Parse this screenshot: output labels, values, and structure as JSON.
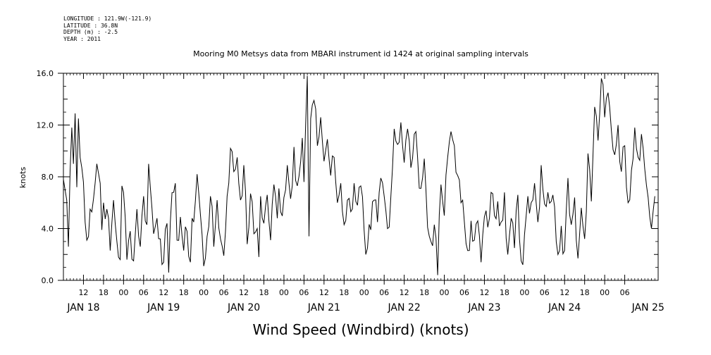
{
  "metadata": {
    "longitude": "LONGITUDE : 121.9W(-121.9)",
    "latitude": "LATITUDE : 36.8N",
    "depth": "DEPTH (m) : -2.5",
    "year": "YEAR : 2011"
  },
  "chart_data": {
    "type": "line",
    "title": "Mooring M0 Metsys data from MBARI instrument id 1424 at original sampling intervals",
    "xlabel": "Wind Speed (Windbird) (knots)",
    "ylabel": "knots",
    "ylim": [
      0,
      16
    ],
    "y_ticks": [
      "0.0",
      "4.0",
      "8.0",
      "12.0",
      "16.0"
    ],
    "xlim_hours": [
      0,
      178
    ],
    "x_hour_ticks": [
      "12",
      "18",
      "00",
      "06",
      "12",
      "18",
      "00",
      "06",
      "12",
      "18",
      "00",
      "06",
      "12",
      "18",
      "00",
      "06",
      "12",
      "18",
      "00",
      "06",
      "12",
      "18",
      "00",
      "06",
      "12",
      "18",
      "00",
      "06"
    ],
    "day_labels": [
      "JAN 18",
      "JAN 19",
      "JAN 20",
      "JAN 21",
      "JAN 22",
      "JAN 23",
      "JAN 24",
      "JAN 25"
    ],
    "grid": false,
    "series": [
      {
        "anchors": [
          [
            0,
            7.8
          ],
          [
            1,
            6.2
          ],
          [
            1.5,
            2.6
          ],
          [
            2,
            8.5
          ],
          [
            2.5,
            11.8
          ],
          [
            3,
            9.0
          ],
          [
            3.5,
            12.9
          ],
          [
            4,
            7.2
          ],
          [
            4.5,
            12.5
          ],
          [
            5,
            9.5
          ],
          [
            6,
            7.6
          ],
          [
            6.5,
            4.5
          ],
          [
            7,
            3.1
          ],
          [
            8,
            5.5
          ],
          [
            9,
            6.3
          ],
          [
            10,
            9.0
          ],
          [
            11,
            7.5
          ],
          [
            11.5,
            3.9
          ],
          [
            12,
            6.0
          ],
          [
            13,
            5.5
          ],
          [
            14,
            2.3
          ],
          [
            15,
            6.2
          ],
          [
            16,
            3.0
          ],
          [
            17,
            1.6
          ],
          [
            17.5,
            7.3
          ],
          [
            18,
            6.8
          ],
          [
            19,
            1.6
          ],
          [
            20,
            3.8
          ],
          [
            21,
            1.5
          ],
          [
            22,
            5.5
          ],
          [
            23,
            2.6
          ],
          [
            24,
            6.5
          ],
          [
            25,
            4.3
          ],
          [
            25.5,
            9.0
          ],
          [
            26,
            7.2
          ],
          [
            27,
            3.6
          ],
          [
            28,
            4.8
          ],
          [
            29,
            3.2
          ],
          [
            30,
            1.4
          ],
          [
            31,
            4.4
          ],
          [
            31.5,
            0.6
          ],
          [
            32,
            4.5
          ],
          [
            33,
            6.8
          ],
          [
            33.5,
            7.5
          ],
          [
            34,
            3.1
          ],
          [
            35,
            4.9
          ],
          [
            36,
            2.3
          ],
          [
            37,
            3.8
          ],
          [
            38,
            1.4
          ],
          [
            38.5,
            4.8
          ],
          [
            39,
            4.5
          ],
          [
            40,
            8.2
          ],
          [
            41,
            5.1
          ],
          [
            42,
            1.1
          ],
          [
            43,
            3.4
          ],
          [
            44,
            6.5
          ],
          [
            45,
            2.6
          ],
          [
            46,
            6.2
          ],
          [
            47,
            3.2
          ],
          [
            48,
            1.9
          ],
          [
            49,
            6.5
          ],
          [
            50,
            10.2
          ],
          [
            51,
            8.4
          ],
          [
            52,
            9.5
          ],
          [
            53,
            6.2
          ],
          [
            54,
            8.9
          ],
          [
            55,
            2.8
          ],
          [
            56,
            6.7
          ],
          [
            57,
            3.6
          ],
          [
            58,
            4.0
          ],
          [
            58.5,
            1.8
          ],
          [
            59,
            6.5
          ],
          [
            60,
            4.4
          ],
          [
            61,
            6.6
          ],
          [
            62,
            3.1
          ],
          [
            63,
            7.4
          ],
          [
            64,
            4.8
          ],
          [
            64.5,
            7.1
          ],
          [
            65,
            5.3
          ],
          [
            66,
            6.4
          ],
          [
            67,
            8.9
          ],
          [
            68,
            6.3
          ],
          [
            69,
            10.3
          ],
          [
            70,
            7.3
          ],
          [
            71,
            9.2
          ],
          [
            71.5,
            11.0
          ],
          [
            72,
            7.6
          ],
          [
            73,
            15.8
          ],
          [
            73.5,
            3.4
          ],
          [
            74,
            12.5
          ],
          [
            75,
            13.9
          ],
          [
            76,
            10.4
          ],
          [
            77,
            12.6
          ],
          [
            78,
            9.2
          ],
          [
            79,
            10.9
          ],
          [
            80,
            8.1
          ],
          [
            81,
            9.5
          ],
          [
            82,
            6.0
          ],
          [
            83,
            7.5
          ],
          [
            84,
            4.3
          ],
          [
            85,
            6.2
          ],
          [
            86,
            5.3
          ],
          [
            87,
            7.5
          ],
          [
            88,
            5.8
          ],
          [
            89,
            7.3
          ],
          [
            90,
            3.9
          ],
          [
            90.5,
            2.0
          ],
          [
            91,
            2.5
          ],
          [
            92,
            3.9
          ],
          [
            93,
            6.2
          ],
          [
            94,
            4.5
          ],
          [
            95,
            7.9
          ],
          [
            96,
            6.5
          ],
          [
            97,
            4.0
          ],
          [
            98,
            6.5
          ],
          [
            99,
            11.7
          ],
          [
            100,
            10.5
          ],
          [
            101,
            12.2
          ],
          [
            102,
            9.1
          ],
          [
            103,
            11.7
          ],
          [
            104,
            8.7
          ],
          [
            105,
            11.3
          ],
          [
            106,
            9.5
          ],
          [
            107,
            7.1
          ],
          [
            108,
            9.4
          ],
          [
            109,
            4.1
          ],
          [
            110,
            3.0
          ],
          [
            111,
            4.3
          ],
          [
            111.5,
            3.3
          ],
          [
            112,
            0.4
          ],
          [
            113,
            7.4
          ],
          [
            114,
            5.0
          ],
          [
            115,
            9.5
          ],
          [
            116,
            11.5
          ],
          [
            117,
            10.4
          ],
          [
            118,
            8.1
          ],
          [
            119,
            6.0
          ],
          [
            120,
            4.5
          ],
          [
            121,
            2.3
          ],
          [
            122,
            4.6
          ],
          [
            123,
            3.1
          ],
          [
            124,
            4.6
          ],
          [
            125,
            1.4
          ],
          [
            126,
            4.9
          ],
          [
            127,
            4.1
          ],
          [
            128,
            6.8
          ],
          [
            129,
            5.0
          ],
          [
            130,
            6.1
          ],
          [
            131,
            4.5
          ],
          [
            132,
            6.8
          ],
          [
            133,
            2.0
          ],
          [
            134,
            4.8
          ],
          [
            135,
            2.5
          ],
          [
            136,
            6.6
          ],
          [
            137,
            1.5
          ],
          [
            137.5,
            1.2
          ],
          [
            138,
            3.5
          ],
          [
            139,
            6.5
          ],
          [
            140,
            6.0
          ],
          [
            141,
            7.5
          ],
          [
            142,
            4.5
          ],
          [
            143,
            8.9
          ],
          [
            144,
            5.9
          ],
          [
            145,
            6.8
          ],
          [
            146,
            6.1
          ],
          [
            147,
            5.7
          ],
          [
            148,
            2.0
          ],
          [
            149,
            4.2
          ],
          [
            150,
            2.3
          ],
          [
            151,
            7.9
          ],
          [
            152,
            4.3
          ],
          [
            153,
            6.4
          ],
          [
            154,
            1.7
          ],
          [
            155,
            5.6
          ],
          [
            156,
            3.2
          ],
          [
            157,
            9.8
          ],
          [
            158,
            6.1
          ],
          [
            159,
            13.4
          ],
          [
            160,
            10.8
          ],
          [
            161,
            15.6
          ],
          [
            162,
            12.6
          ],
          [
            163,
            14.5
          ],
          [
            164,
            11.6
          ],
          [
            165,
            9.7
          ],
          [
            166,
            12.0
          ],
          [
            167,
            8.4
          ],
          [
            168,
            10.4
          ],
          [
            169,
            6.0
          ],
          [
            170,
            8.5
          ],
          [
            171,
            11.8
          ],
          [
            172,
            9.5
          ],
          [
            173,
            11.3
          ],
          [
            174,
            8.6
          ],
          [
            175,
            6.4
          ],
          [
            176,
            4.0
          ],
          [
            177,
            6.5
          ]
        ]
      }
    ]
  }
}
